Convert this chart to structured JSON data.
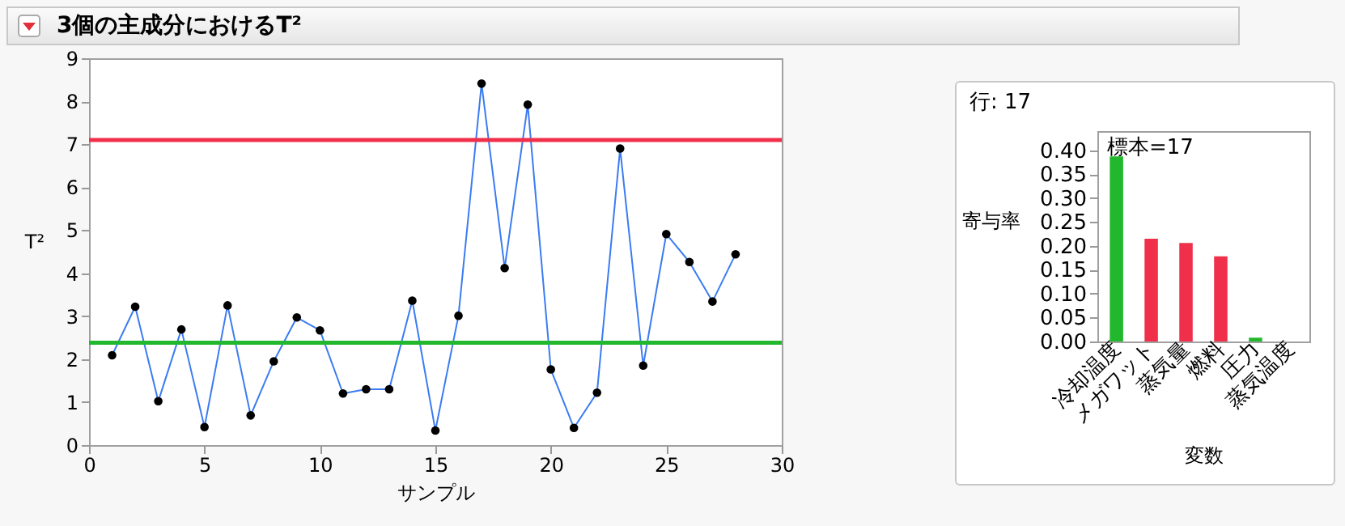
{
  "chart_data": [
    {
      "type": "line",
      "title": "3個の主成分におけるT²",
      "xlabel": "サンプル",
      "ylabel": "T²",
      "marker": "circle",
      "grid": false,
      "x": [
        1,
        2,
        3,
        4,
        5,
        6,
        7,
        8,
        9,
        10,
        11,
        12,
        13,
        14,
        15,
        16,
        17,
        18,
        19,
        20,
        21,
        22,
        23,
        24,
        25,
        26,
        27,
        28
      ],
      "series": [
        {
          "color": "#3b7cf2",
          "values": [
            2.09,
            3.22,
            1.02,
            2.69,
            0.42,
            3.25,
            0.69,
            1.95,
            2.97,
            2.67,
            1.2,
            1.3,
            1.3,
            3.36,
            0.34,
            3.01,
            8.41,
            4.12,
            7.92,
            1.76,
            0.4,
            1.22,
            6.9,
            1.85,
            4.91,
            4.26,
            3.34,
            4.44
          ]
        }
      ],
      "xlim": [
        0,
        30
      ],
      "xticks": [
        0,
        5,
        10,
        15,
        20,
        25,
        30
      ],
      "ylim": [
        0,
        9
      ],
      "yticks": [
        0,
        1,
        2,
        3,
        4,
        5,
        6,
        7,
        8,
        9
      ],
      "ref_lines": [
        {
          "axis": "y",
          "value": 7.1,
          "color": "#f0304a"
        },
        {
          "axis": "y",
          "value": 2.38,
          "color": "#22b82e"
        }
      ]
    },
    {
      "type": "bar",
      "title": "行: 17",
      "xlabel": "変数",
      "ylabel": "寄与率",
      "annotations": [
        "標本=17"
      ],
      "grid": false,
      "categories": [
        "冷却温度",
        "メガワット",
        "蒸気量",
        "燃料",
        "圧力",
        "蒸気温度"
      ],
      "values": [
        0.387,
        0.215,
        0.206,
        0.178,
        0.008,
        0
      ],
      "colors": [
        "#22b82e",
        "#f0304a",
        "#f0304a",
        "#f0304a",
        "#22b82e",
        "#22b82e"
      ],
      "ylim": [
        0,
        0.44
      ],
      "yticks": [
        {
          "value": 0,
          "label": "0.00"
        },
        {
          "value": 0.05,
          "label": "0.05"
        },
        {
          "value": 0.1,
          "label": "0.10"
        },
        {
          "value": 0.15,
          "label": "0.15"
        },
        {
          "value": 0.2,
          "label": "0.20"
        },
        {
          "value": 0.25,
          "label": "0.25"
        },
        {
          "value": 0.3,
          "label": "0.30"
        },
        {
          "value": 0.35,
          "label": "0.35"
        },
        {
          "value": 0.4,
          "label": "0.40"
        }
      ]
    }
  ]
}
